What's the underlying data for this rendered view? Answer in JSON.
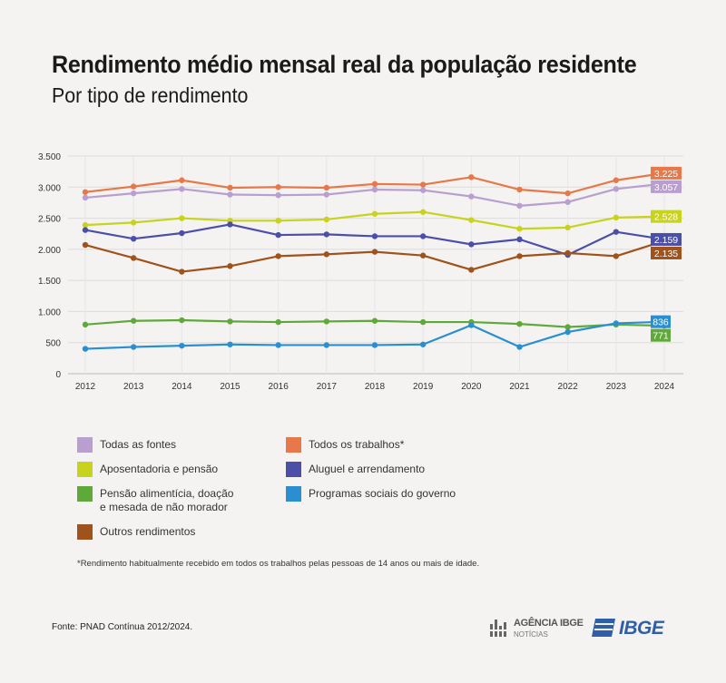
{
  "header": {
    "title": "Rendimento médio mensal real da população residente",
    "subtitle": "Por tipo de rendimento"
  },
  "chart_data": {
    "type": "line",
    "x": [
      "2012",
      "2013",
      "2014",
      "2015",
      "2016",
      "2017",
      "2018",
      "2019",
      "2020",
      "2021",
      "2022",
      "2023",
      "2024"
    ],
    "ylim": [
      0,
      3500
    ],
    "yticks": [
      0,
      500,
      1000,
      1500,
      2000,
      2500,
      3000,
      3500
    ],
    "ytick_labels": [
      "0",
      "500",
      "1.000",
      "1.500",
      "2.000",
      "2.500",
      "3.000",
      "3.500"
    ],
    "grid": true,
    "legend_position": "bottom",
    "series": [
      {
        "name": "Todas as fontes",
        "color": "#b89fd0",
        "end_label": "3.057",
        "values": [
          2830,
          2900,
          2970,
          2880,
          2870,
          2880,
          2960,
          2950,
          2850,
          2700,
          2760,
          2970,
          3057
        ]
      },
      {
        "name": "Todos os trabalhos*",
        "color": "#e6784a",
        "end_label": "3.225",
        "values": [
          2920,
          3010,
          3110,
          2990,
          3000,
          2990,
          3050,
          3040,
          3160,
          2960,
          2900,
          3110,
          3225
        ]
      },
      {
        "name": "Aposentadoria e pensão",
        "color": "#c8d31e",
        "end_label": "2.528",
        "values": [
          2390,
          2430,
          2500,
          2460,
          2460,
          2480,
          2570,
          2600,
          2470,
          2330,
          2350,
          2510,
          2528
        ]
      },
      {
        "name": "Aluguel e arrendamento",
        "color": "#4b4fa8",
        "end_label": "2.159",
        "values": [
          2310,
          2170,
          2260,
          2400,
          2230,
          2240,
          2210,
          2210,
          2080,
          2160,
          1910,
          2280,
          2159
        ]
      },
      {
        "name": "Pensão alimentícia, doação\ne mesada de não morador",
        "color": "#5fa83a",
        "end_label": "771",
        "values": [
          790,
          850,
          860,
          840,
          830,
          840,
          850,
          830,
          830,
          800,
          750,
          790,
          771
        ]
      },
      {
        "name": "Programas sociais do governo",
        "color": "#2a8fd0",
        "end_label": "836",
        "values": [
          400,
          430,
          450,
          470,
          460,
          460,
          460,
          470,
          780,
          430,
          670,
          810,
          836
        ]
      },
      {
        "name": "Outros rendimentos",
        "color": "#a0521c",
        "end_label": "2.135",
        "values": [
          2070,
          1860,
          1640,
          1730,
          1890,
          1920,
          1960,
          1900,
          1670,
          1890,
          1940,
          1890,
          2135
        ]
      }
    ]
  },
  "footnote": "*Rendimento habitualmente recebido em todos os trabalhos pelas pessoas de 14 anos ou mais de idade.",
  "source": "Fonte: PNAD Contínua 2012/2024.",
  "logos": {
    "agencia_name": "AGÊNCIA IBGE",
    "agencia_sub": "NOTÍCIAS",
    "ibge": "IBGE"
  }
}
